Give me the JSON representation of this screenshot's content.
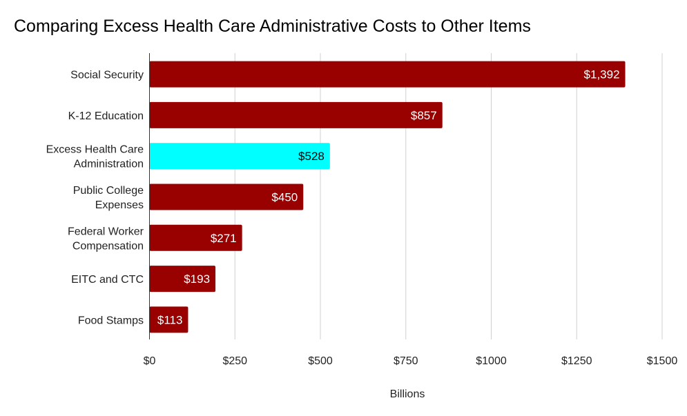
{
  "chart_data": {
    "type": "bar",
    "orientation": "horizontal",
    "title": "Comparing Excess Health Care Administrative Costs to Other Items",
    "xlabel": "Billions",
    "ylabel": "",
    "categories": [
      [
        "Social Security"
      ],
      [
        "K-12 Education"
      ],
      [
        "Excess Health Care",
        "Administration"
      ],
      [
        "Public College",
        "Expenses"
      ],
      [
        "Federal Worker",
        "Compensation"
      ],
      [
        "EITC and CTC"
      ],
      [
        "Food Stamps"
      ]
    ],
    "values": [
      1392,
      857,
      528,
      450,
      271,
      193,
      113
    ],
    "data_labels": [
      "$1,392",
      "$857",
      "$528",
      "$450",
      "$271",
      "$193",
      "$113"
    ],
    "bar_colors": [
      "#990000",
      "#990000",
      "#00ffff",
      "#990000",
      "#990000",
      "#990000",
      "#990000"
    ],
    "label_colors": [
      "#ffffff",
      "#ffffff",
      "#000000",
      "#ffffff",
      "#ffffff",
      "#ffffff",
      "#ffffff"
    ],
    "xlim": [
      0,
      1500
    ],
    "xticks": [
      0,
      250,
      500,
      750,
      1000,
      1250,
      1500
    ],
    "xtick_labels": [
      "$0",
      "$250",
      "$500",
      "$750",
      "$1000",
      "$1250",
      "$1500"
    ],
    "grid": true,
    "legend": "none"
  }
}
